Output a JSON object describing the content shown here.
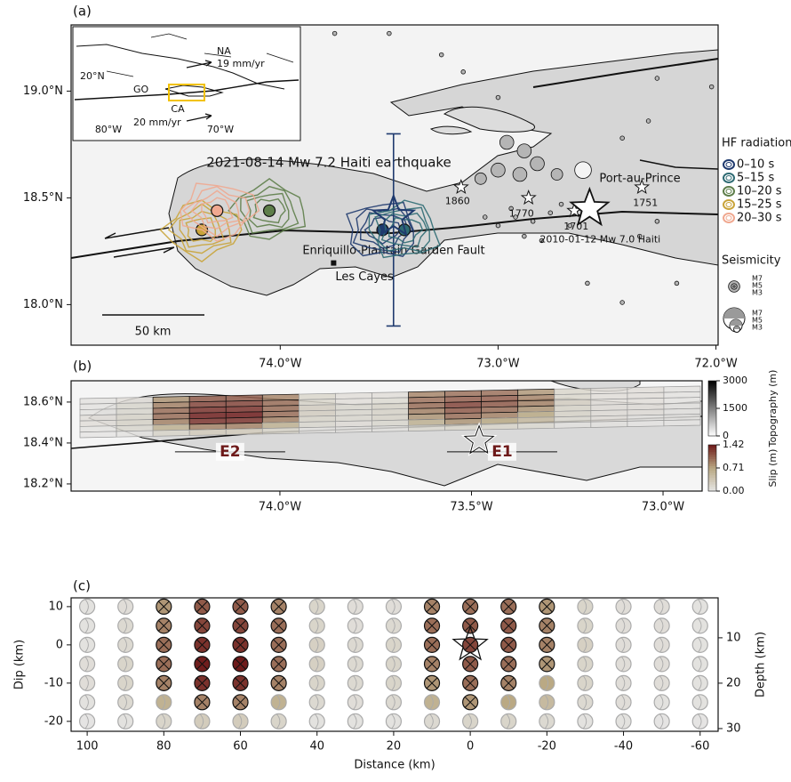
{
  "panel_a": {
    "label": "(a)",
    "title": "2021-08-14 Mw 7.2 Haiti earthquake",
    "xlim": [
      -74.96,
      -71.99
    ],
    "ylim": [
      17.81,
      19.31
    ],
    "xticks": [
      {
        "value": -74,
        "label": "74.0°W"
      },
      {
        "value": -73,
        "label": "73.0°W"
      },
      {
        "value": -72,
        "label": "72.0°W"
      }
    ],
    "yticks": [
      {
        "value": 19,
        "label": "19.0°N"
      },
      {
        "value": 18.5,
        "label": "18.5°N"
      },
      {
        "value": 18,
        "label": "18.0°N"
      }
    ],
    "fault_label": "Enriquillo-Plantain Garden Fault",
    "les_cayes": {
      "name": "Les Cayes",
      "lon": -73.755,
      "lat": 18.195
    },
    "port_au_prince": "Port-au-Prince",
    "historical": [
      {
        "year": 1860,
        "lon": -73.17,
        "lat": 18.55
      },
      {
        "year": 1770,
        "lon": -72.86,
        "lat": 18.5
      },
      {
        "year": 1701,
        "lon": -72.65,
        "lat": 18.44
      },
      {
        "year": 1751,
        "lon": -72.34,
        "lat": 18.55
      }
    ],
    "event_2010": {
      "label": "2010-01-12 Mw 7.0 Haiti",
      "lon": -72.58,
      "lat": 18.45
    },
    "epicenter": {
      "lon": -73.48,
      "lat": 18.41,
      "lat_range": [
        17.9,
        18.8
      ]
    },
    "scale_bar": "50 km",
    "hf_legend_title": "HF radiation",
    "hf_radiation": [
      {
        "name": "0–10 s",
        "color": "#1f3a6e",
        "lon": -73.53,
        "lat": 18.35
      },
      {
        "name": "5–15 s",
        "color": "#2e6b73",
        "lon": -73.43,
        "lat": 18.35
      },
      {
        "name": "10–20 s",
        "color": "#5e7e4a",
        "lon": -74.05,
        "lat": 18.44
      },
      {
        "name": "15–25 s",
        "color": "#c9a43a",
        "lon": -74.36,
        "lat": 18.35
      },
      {
        "name": "20–30 s",
        "color": "#f0a890",
        "lon": -74.29,
        "lat": 18.44
      }
    ],
    "seismicity_title": "Seismicity",
    "seismicity_sizes": [
      "M7",
      "M5",
      "M3"
    ],
    "seismicity": [
      [
        -73.75,
        19.27,
        3
      ],
      [
        -73.5,
        19.27,
        3
      ],
      [
        -73.26,
        19.17,
        3
      ],
      [
        -73.16,
        19.09,
        3
      ],
      [
        -73.0,
        18.97,
        3
      ],
      [
        -72.27,
        19.06,
        3
      ],
      [
        -72.02,
        19.02,
        3
      ],
      [
        -72.43,
        18.78,
        3
      ],
      [
        -72.31,
        18.86,
        3
      ],
      [
        -72.92,
        18.41,
        3
      ],
      [
        -72.84,
        18.39,
        3
      ],
      [
        -72.76,
        18.43,
        3
      ],
      [
        -73.0,
        18.37,
        3
      ],
      [
        -72.88,
        18.32,
        3
      ],
      [
        -72.8,
        18.3,
        3
      ],
      [
        -72.94,
        18.45,
        3
      ],
      [
        -72.67,
        18.37,
        3
      ],
      [
        -73.06,
        18.41,
        3
      ],
      [
        -72.71,
        18.47,
        3
      ],
      [
        -72.59,
        18.1,
        3
      ],
      [
        -72.43,
        18.01,
        3
      ],
      [
        -72.18,
        18.1,
        3
      ],
      [
        -72.27,
        18.39,
        3
      ],
      [
        -72.35,
        18.32,
        3
      ],
      [
        -72.96,
        18.76,
        5.5
      ],
      [
        -72.88,
        18.72,
        5.5
      ],
      [
        -72.82,
        18.66,
        5.5
      ],
      [
        -73.0,
        18.63,
        5.5
      ],
      [
        -72.9,
        18.61,
        5.5
      ],
      [
        -72.73,
        18.61,
        5
      ],
      [
        -72.61,
        18.63,
        6
      ],
      [
        -73.08,
        18.59,
        5
      ]
    ],
    "inset": {
      "na": "NA",
      "na_rate": "19 mm/yr",
      "lat": "20°N",
      "go": "GO",
      "ca": "CA",
      "ca_rate": "20 mm/yr",
      "lon_w": "80°W",
      "lon_e": "70°W"
    }
  },
  "panel_b": {
    "label": "(b)",
    "xlim": [
      -74.545,
      -72.898
    ],
    "ylim": [
      18.165,
      18.704
    ],
    "xticks": [
      {
        "value": -74,
        "label": "74.0°W"
      },
      {
        "value": -73.5,
        "label": "73.5°W"
      },
      {
        "value": -73,
        "label": "73.0°W"
      }
    ],
    "yticks": [
      {
        "value": 18.6,
        "label": "18.6°N"
      },
      {
        "value": 18.4,
        "label": "18.4°N"
      },
      {
        "value": 18.2,
        "label": "18.2°N"
      }
    ],
    "topography": {
      "label": "Topography (m)",
      "ticks": [
        0,
        1500,
        3000
      ]
    },
    "slip_colorbar": {
      "label": "Slip (m)",
      "ticks": [
        {
          "value": 0,
          "label": "0.00"
        },
        0.71,
        1.42
      ]
    },
    "asperities": [
      {
        "name": "E2",
        "lon": -74.13,
        "lat": 18.357
      },
      {
        "name": "E1",
        "lon": -73.42,
        "lat": 18.357
      }
    ]
  },
  "panel_c": {
    "label": "(c)",
    "xlabel": "Distance (km)",
    "ylabel": "Dip (km)",
    "y2label": "Depth (km)",
    "xlim": [
      104.2,
      -64.7
    ],
    "ylim": [
      -22.6,
      12.3
    ],
    "y2lim": [
      30.6,
      1.2
    ],
    "xticks": [
      100,
      80,
      60,
      40,
      20,
      0,
      -20,
      -40,
      -60
    ],
    "yticks": [
      10,
      0,
      -10,
      -20
    ],
    "y2ticks": [
      10,
      20,
      30
    ]
  },
  "slip_model": {
    "distance": [
      100,
      90,
      80,
      70,
      60,
      50,
      40,
      30,
      20,
      10,
      0,
      -10,
      -20,
      -30,
      -40,
      -50,
      -60
    ],
    "dip": [
      10,
      5,
      0,
      -5,
      -10,
      -15,
      -20
    ],
    "hypocenter": {
      "distance": 0,
      "dip": 0
    },
    "slip": [
      [
        0.05,
        0.1,
        0.8,
        1.1,
        1.1,
        0.9,
        0.2,
        0.1,
        0.1,
        0.9,
        1.0,
        1.0,
        0.8,
        0.2,
        0.1,
        0.1,
        0.05
      ],
      [
        0.05,
        0.15,
        0.9,
        1.2,
        1.2,
        1.0,
        0.2,
        0.1,
        0.15,
        1.0,
        1.1,
        1.1,
        0.9,
        0.2,
        0.1,
        0.1,
        0.05
      ],
      [
        0.05,
        0.15,
        1.0,
        1.3,
        1.3,
        1.0,
        0.25,
        0.15,
        0.2,
        1.0,
        1.2,
        1.1,
        0.9,
        0.25,
        0.1,
        0.1,
        0.05
      ],
      [
        0.1,
        0.2,
        1.0,
        1.4,
        1.42,
        1.0,
        0.25,
        0.15,
        0.2,
        0.9,
        1.1,
        1.0,
        0.8,
        0.2,
        0.1,
        0.1,
        0.05
      ],
      [
        0.1,
        0.2,
        0.9,
        1.3,
        1.3,
        0.9,
        0.2,
        0.15,
        0.2,
        0.8,
        1.0,
        0.9,
        0.7,
        0.2,
        0.1,
        0.1,
        0.05
      ],
      [
        0.05,
        0.15,
        0.6,
        0.9,
        0.9,
        0.6,
        0.15,
        0.1,
        0.15,
        0.6,
        0.8,
        0.7,
        0.5,
        0.15,
        0.1,
        0.05,
        0.05
      ],
      [
        0.02,
        0.05,
        0.2,
        0.3,
        0.3,
        0.2,
        0.05,
        0.05,
        0.05,
        0.15,
        0.2,
        0.2,
        0.15,
        0.05,
        0.05,
        0.02,
        0.02
      ]
    ]
  }
}
